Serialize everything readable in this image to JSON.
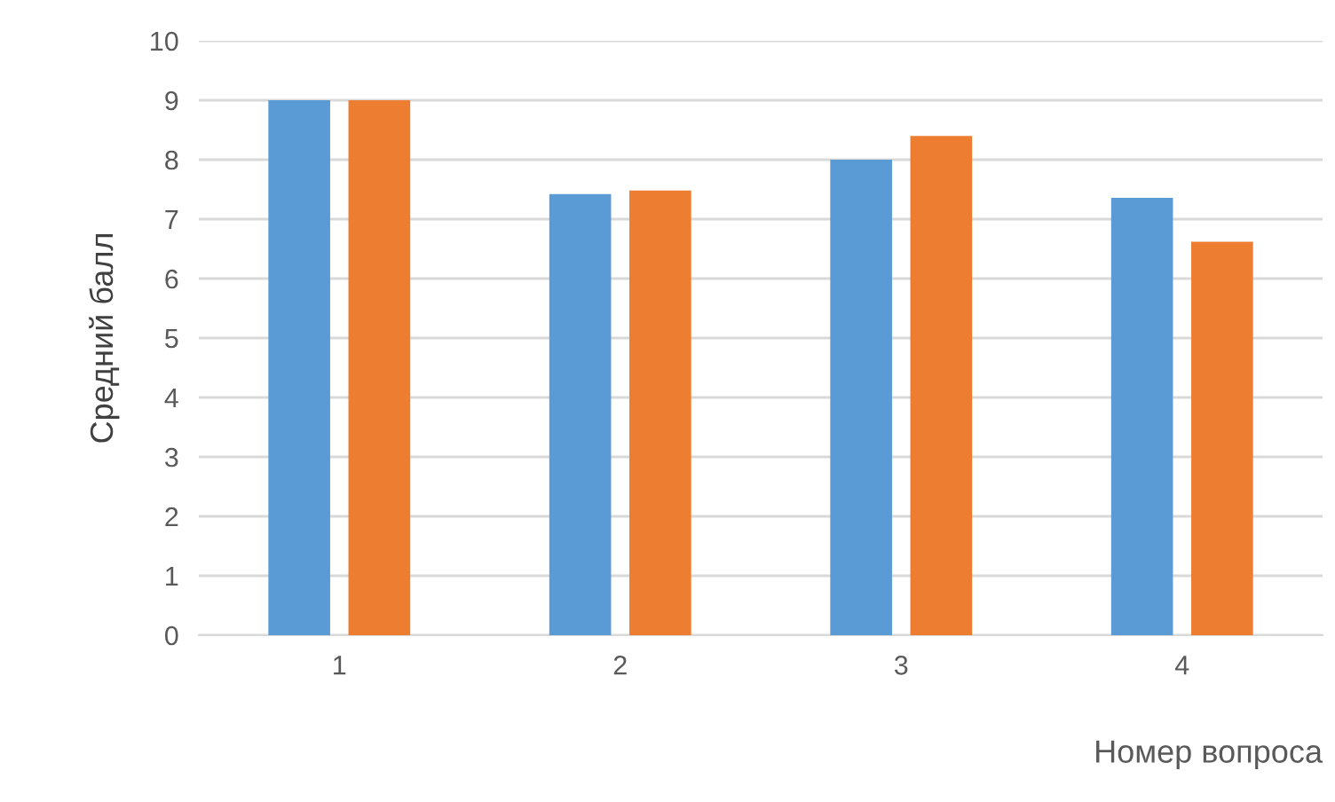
{
  "chart_data": {
    "type": "bar",
    "xlabel": "Номер вопроса",
    "ylabel": "Средний балл",
    "categories": [
      "1",
      "2",
      "3",
      "4"
    ],
    "series": [
      {
        "color": "#5b9bd5",
        "values": [
          9,
          7.42,
          8.0,
          7.36
        ]
      },
      {
        "color": "#ed7d31",
        "values": [
          9,
          7.48,
          8.4,
          6.62
        ]
      }
    ],
    "ylim": [
      0,
      10
    ],
    "yticks": [
      0,
      1,
      2,
      3,
      4,
      5,
      6,
      7,
      8,
      9,
      10
    ],
    "grid": "y",
    "legend": false
  }
}
